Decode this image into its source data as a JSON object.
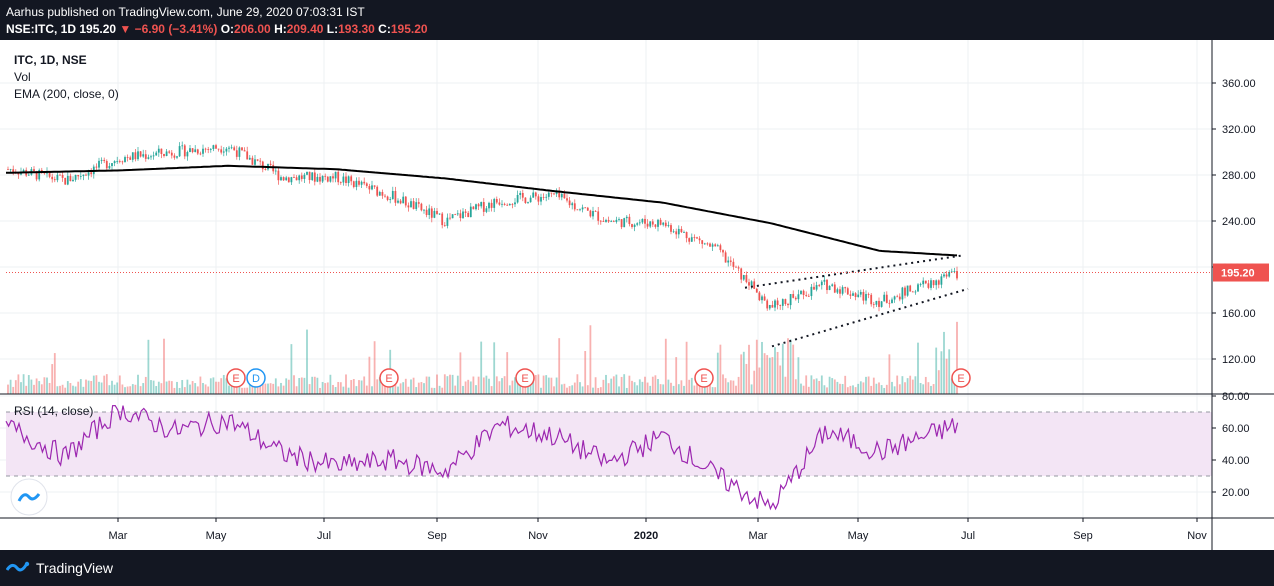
{
  "header": {
    "publisher": "Aarhus",
    "published_text": "Aarhus published on TradingView.com, June 29, 2020 07:03:31 IST",
    "symbol": "NSE:ITC, 1D",
    "last": "195.20",
    "change": "▼ −6.90 (−3.41%)",
    "open_label": "O:",
    "open": "206.00",
    "high_label": "H:",
    "high": "209.40",
    "low_label": "L:",
    "low": "193.30",
    "close_label": "C:",
    "close": "195.20"
  },
  "legend": {
    "title": "ITC, 1D, NSE",
    "vol": "Vol",
    "ema": "EMA (200, close, 0)",
    "rsi": "RSI (14, close)"
  },
  "price_badge": "195.20",
  "footer": {
    "brand": "TradingView"
  },
  "colors": {
    "up": "#26a69a",
    "down": "#ef5350",
    "ema": "#000000",
    "rsi_line": "#9c27b0",
    "rsi_band": "#f3e5f5",
    "dark": "#131722"
  },
  "chart_data": {
    "type": "line",
    "x_ticks": [
      "Mar",
      "May",
      "Jul",
      "Sep",
      "Nov",
      "2020",
      "Mar",
      "May",
      "Jul",
      "Sep",
      "Nov"
    ],
    "price_axis": {
      "ticks": [
        "360.00",
        "320.00",
        "280.00",
        "240.00",
        "200.00",
        "160.00",
        "120.00"
      ],
      "range": [
        90,
        380
      ]
    },
    "rsi_axis": {
      "ticks": [
        "80.00",
        "60.00",
        "40.00",
        "20.00"
      ],
      "range": [
        5,
        80
      ],
      "upper_band": 70,
      "lower_band": 30
    },
    "price_series": [
      {
        "date": "2019-01",
        "close": 285
      },
      {
        "date": "2019-02",
        "close": 275
      },
      {
        "date": "2019-03",
        "close": 295
      },
      {
        "date": "2019-04",
        "close": 300
      },
      {
        "date": "2019-05",
        "close": 305
      },
      {
        "date": "2019-06",
        "close": 278
      },
      {
        "date": "2019-07",
        "close": 278
      },
      {
        "date": "2019-08",
        "close": 262
      },
      {
        "date": "2019-09",
        "close": 240
      },
      {
        "date": "2019-10",
        "close": 258
      },
      {
        "date": "2019-11",
        "close": 262
      },
      {
        "date": "2019-12",
        "close": 240
      },
      {
        "date": "2020-01",
        "close": 238
      },
      {
        "date": "2020-02",
        "close": 215
      },
      {
        "date": "2020-03",
        "close": 165
      },
      {
        "date": "2020-04",
        "close": 185
      },
      {
        "date": "2020-05",
        "close": 170
      },
      {
        "date": "2020-06",
        "close": 195.2
      }
    ],
    "ema_series": [
      {
        "date": "2019-01",
        "value": 282
      },
      {
        "date": "2019-03",
        "value": 284
      },
      {
        "date": "2019-05",
        "value": 288
      },
      {
        "date": "2019-07",
        "value": 285
      },
      {
        "date": "2019-09",
        "value": 277
      },
      {
        "date": "2019-11",
        "value": 266
      },
      {
        "date": "2020-01",
        "value": 256
      },
      {
        "date": "2020-03",
        "value": 238
      },
      {
        "date": "2020-05",
        "value": 214
      },
      {
        "date": "2020-06",
        "value": 210
      }
    ],
    "rsi_series": [
      {
        "date": "2019-01",
        "value": 60
      },
      {
        "date": "2019-02",
        "value": 42
      },
      {
        "date": "2019-03",
        "value": 72
      },
      {
        "date": "2019-04",
        "value": 58
      },
      {
        "date": "2019-05",
        "value": 65
      },
      {
        "date": "2019-06",
        "value": 44
      },
      {
        "date": "2019-07",
        "value": 36
      },
      {
        "date": "2019-08",
        "value": 40
      },
      {
        "date": "2019-09",
        "value": 33
      },
      {
        "date": "2019-10",
        "value": 62
      },
      {
        "date": "2019-11",
        "value": 55
      },
      {
        "date": "2019-12",
        "value": 38
      },
      {
        "date": "2020-01",
        "value": 55
      },
      {
        "date": "2020-02",
        "value": 30
      },
      {
        "date": "2020-03",
        "value": 10
      },
      {
        "date": "2020-04",
        "value": 58
      },
      {
        "date": "2020-05",
        "value": 45
      },
      {
        "date": "2020-06",
        "value": 62
      }
    ],
    "earnings_markers": [
      {
        "label": "E",
        "date": "2019-05"
      },
      {
        "label": "D",
        "date": "2019-05"
      },
      {
        "label": "E",
        "date": "2019-08"
      },
      {
        "label": "E",
        "date": "2019-11"
      },
      {
        "label": "E",
        "date": "2020-02"
      },
      {
        "label": "E",
        "date": "2020-06"
      }
    ],
    "price_line": 195.2
  }
}
